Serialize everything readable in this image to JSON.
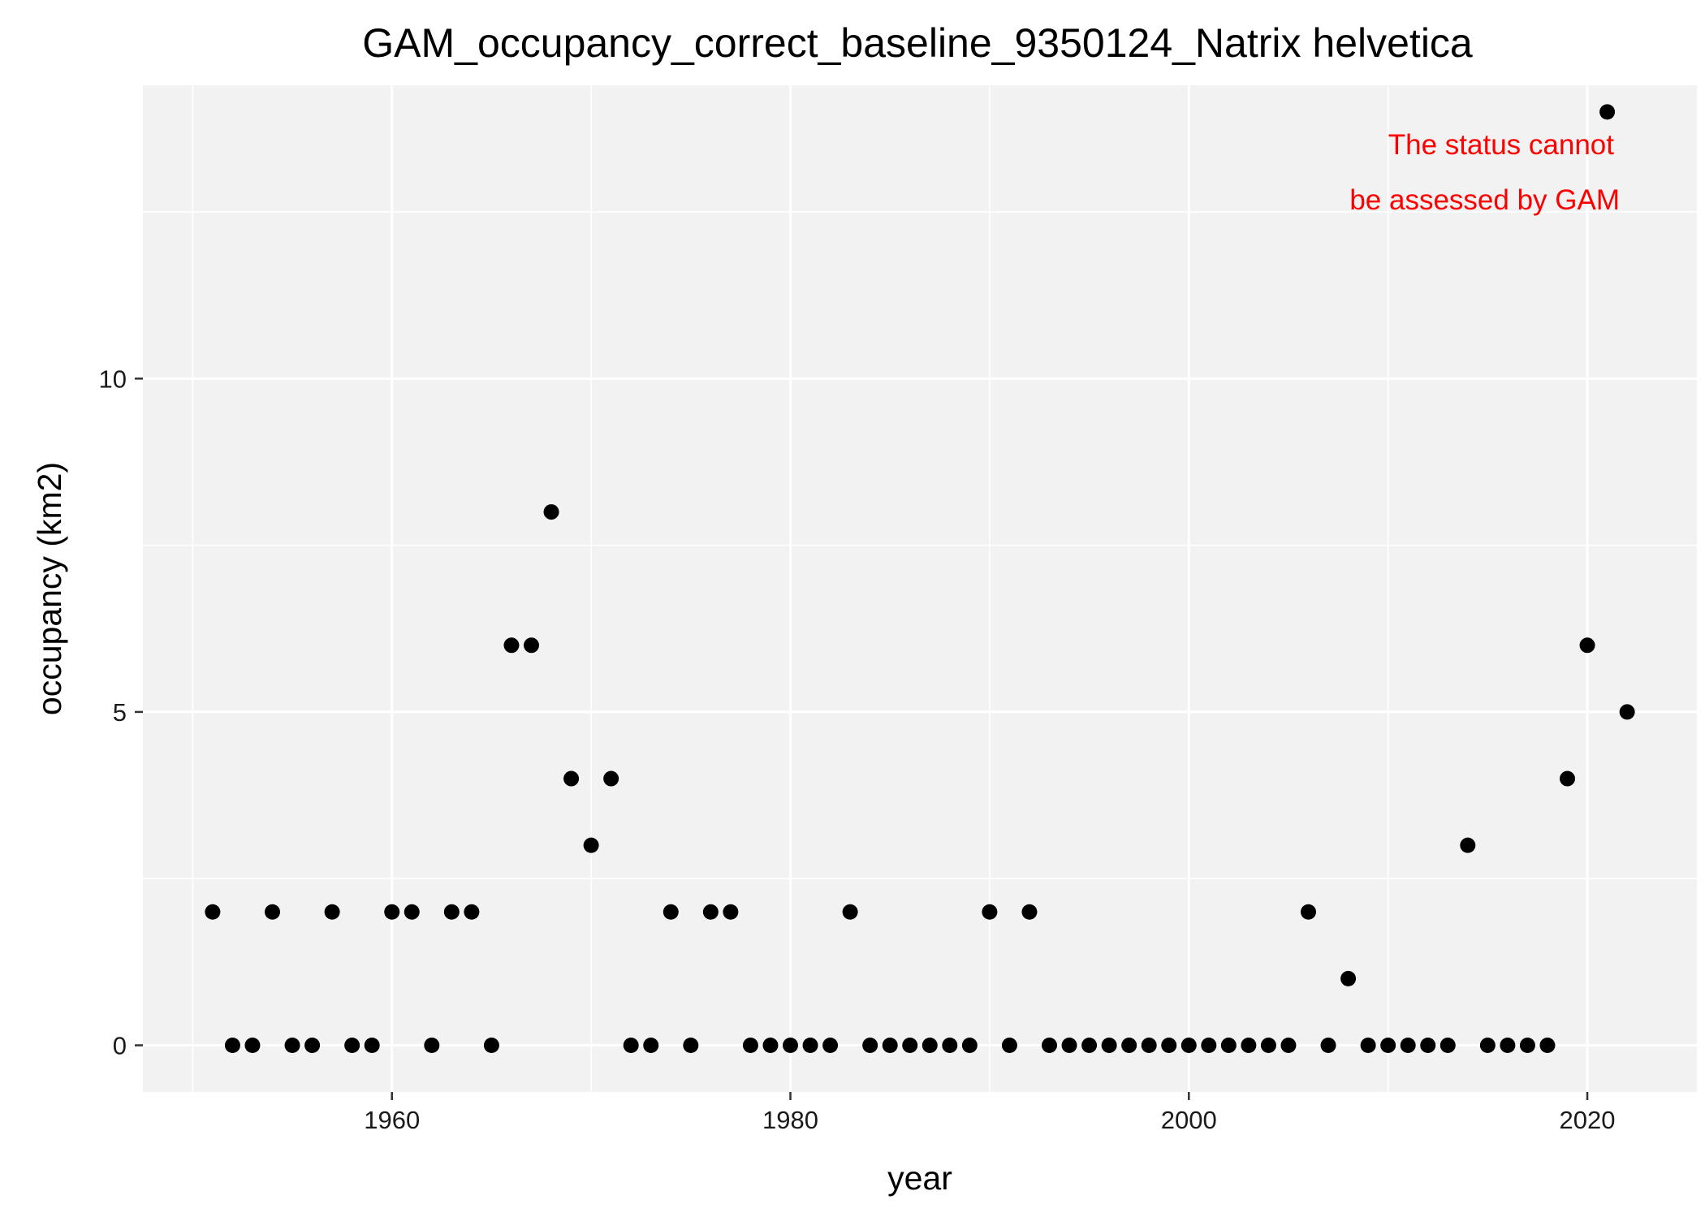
{
  "chart_data": {
    "type": "scatter",
    "title": "GAM_occupancy_correct_baseline_9350124_Natrix helvetica",
    "xlabel": "year",
    "ylabel": "occupancy (km2)",
    "xlim": [
      1947.5,
      2025.5
    ],
    "ylim": [
      -0.7,
      14.4
    ],
    "x_ticks": [
      1960,
      1980,
      2000,
      2020
    ],
    "x_tick_labels": [
      "1960",
      "1980",
      "2000",
      "2020"
    ],
    "y_ticks": [
      0,
      5,
      10
    ],
    "y_tick_labels": [
      "0",
      "5",
      "10"
    ],
    "grid": true,
    "panel_background": "#f2f2f2",
    "grid_color": "#ffffff",
    "point_color": "#000000",
    "annotation": {
      "lines": [
        "The status cannot",
        "be assessed by GAM"
      ],
      "color": "#ff0000",
      "position": "top-right"
    },
    "x": [
      1951,
      1952,
      1953,
      1954,
      1955,
      1956,
      1957,
      1958,
      1959,
      1960,
      1961,
      1962,
      1963,
      1964,
      1965,
      1966,
      1967,
      1968,
      1969,
      1970,
      1971,
      1972,
      1973,
      1974,
      1975,
      1976,
      1977,
      1978,
      1979,
      1980,
      1981,
      1982,
      1983,
      1984,
      1985,
      1986,
      1987,
      1988,
      1989,
      1990,
      1991,
      1992,
      1993,
      1994,
      1995,
      1996,
      1997,
      1998,
      1999,
      2000,
      2001,
      2002,
      2003,
      2004,
      2005,
      2006,
      2007,
      2008,
      2009,
      2010,
      2011,
      2012,
      2013,
      2014,
      2015,
      2016,
      2017,
      2018,
      2019,
      2020,
      2021,
      2022
    ],
    "y": [
      2,
      0,
      0,
      2,
      0,
      0,
      2,
      0,
      0,
      2,
      2,
      0,
      2,
      2,
      0,
      6,
      6,
      8,
      4,
      3,
      4,
      0,
      0,
      2,
      0,
      2,
      2,
      0,
      0,
      0,
      0,
      0,
      2,
      0,
      0,
      0,
      0,
      0,
      0,
      2,
      0,
      2,
      0,
      0,
      0,
      0,
      0,
      0,
      0,
      0,
      0,
      0,
      0,
      0,
      0,
      2,
      0,
      1,
      0,
      0,
      0,
      0,
      0,
      3,
      0,
      0,
      0,
      0,
      4,
      6,
      14,
      5
    ]
  }
}
